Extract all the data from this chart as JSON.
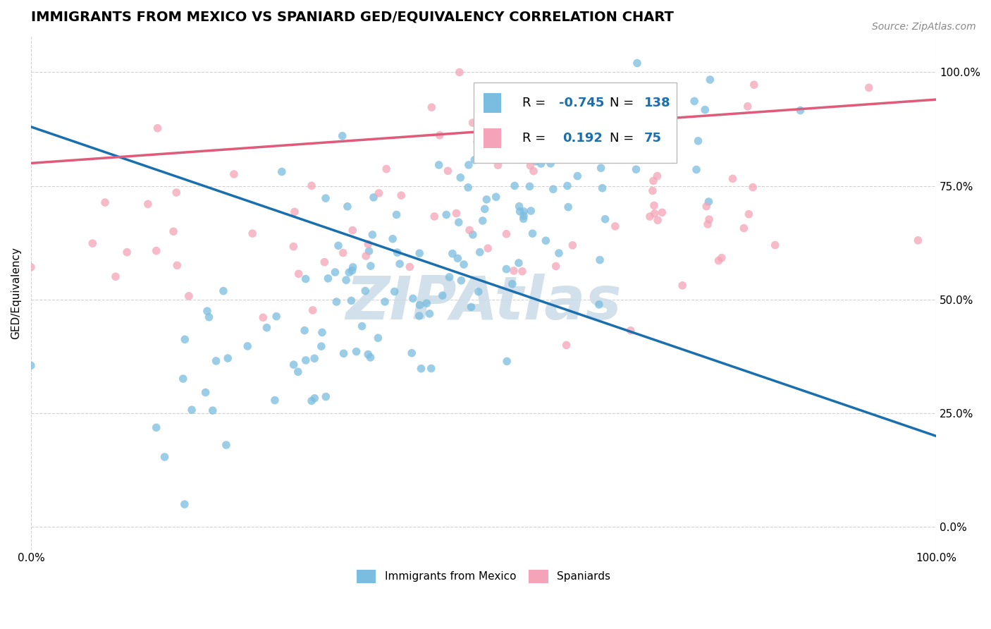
{
  "title": "IMMIGRANTS FROM MEXICO VS SPANIARD GED/EQUIVALENCY CORRELATION CHART",
  "source_text": "Source: ZipAtlas.com",
  "ylabel": "GED/Equivalency",
  "r_mexico": -0.745,
  "n_mexico": 138,
  "r_spain": 0.192,
  "n_spain": 75,
  "xlim": [
    0.0,
    1.0
  ],
  "ylim": [
    -0.05,
    1.08
  ],
  "xtick_labels": [
    "0.0%",
    "100.0%"
  ],
  "ytick_labels": [
    "0.0%",
    "25.0%",
    "50.0%",
    "75.0%",
    "100.0%"
  ],
  "ytick_positions": [
    0.0,
    0.25,
    0.5,
    0.75,
    1.0
  ],
  "color_mexico": "#7bbde0",
  "color_spain": "#f4a3b8",
  "line_color_mexico": "#1a6faf",
  "line_color_spain": "#e05a7a",
  "background_color": "#ffffff",
  "watermark_text": "ZIPAtlas",
  "watermark_color": "#ccdde8",
  "title_fontsize": 14,
  "axis_label_fontsize": 11,
  "tick_fontsize": 11,
  "legend_fontsize": 13,
  "scatter_size": 70,
  "scatter_alpha": 0.75,
  "mexico_line_start_y": 0.88,
  "mexico_line_end_y": 0.2,
  "spain_line_start_y": 0.8,
  "spain_line_end_y": 0.94
}
